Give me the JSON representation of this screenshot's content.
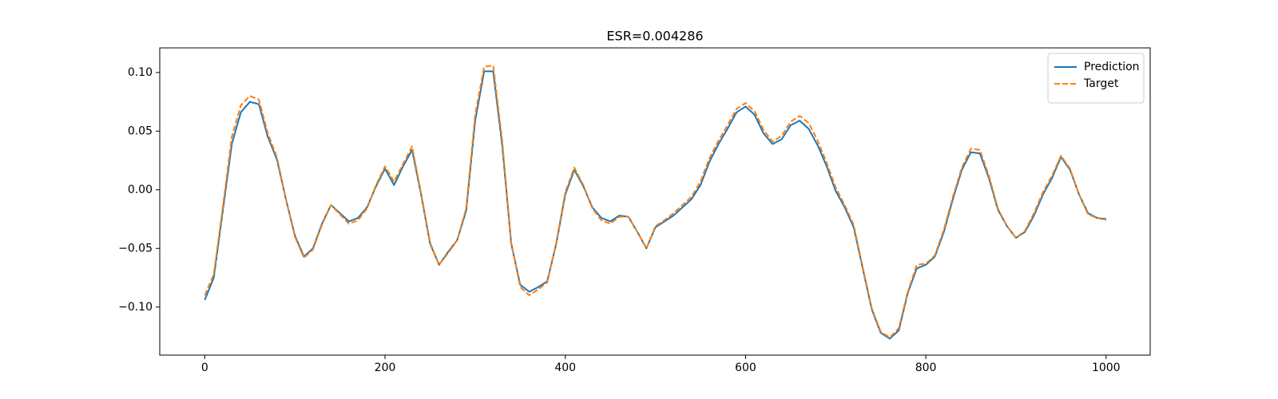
{
  "chart_data": {
    "type": "line",
    "title": "ESR=0.004286",
    "x": [
      0,
      10,
      20,
      30,
      40,
      50,
      60,
      70,
      80,
      90,
      100,
      110,
      120,
      130,
      140,
      150,
      160,
      170,
      180,
      190,
      200,
      210,
      220,
      230,
      240,
      250,
      260,
      270,
      280,
      290,
      300,
      310,
      320,
      330,
      340,
      350,
      360,
      370,
      380,
      390,
      400,
      410,
      420,
      430,
      440,
      450,
      460,
      470,
      480,
      490,
      500,
      510,
      520,
      530,
      540,
      550,
      560,
      570,
      580,
      590,
      600,
      610,
      620,
      630,
      640,
      650,
      660,
      670,
      680,
      690,
      700,
      710,
      720,
      730,
      740,
      750,
      760,
      770,
      780,
      790,
      800,
      810,
      820,
      830,
      840,
      850,
      860,
      870,
      880,
      890,
      900,
      910,
      920,
      930,
      940,
      950,
      960,
      970,
      980,
      990,
      1000
    ],
    "series": [
      {
        "name": "Prediction",
        "color": "#1f77b4",
        "linestyle": "solid",
        "values": [
          -0.094,
          -0.075,
          -0.018,
          0.039,
          0.066,
          0.075,
          0.073,
          0.045,
          0.026,
          -0.008,
          -0.039,
          -0.057,
          -0.05,
          -0.029,
          -0.013,
          -0.02,
          -0.027,
          -0.024,
          -0.015,
          0.003,
          0.018,
          0.004,
          0.02,
          0.034,
          -0.004,
          -0.046,
          -0.064,
          -0.053,
          -0.043,
          -0.018,
          0.059,
          0.101,
          0.101,
          0.038,
          -0.046,
          -0.081,
          -0.087,
          -0.083,
          -0.078,
          -0.046,
          -0.004,
          0.017,
          0.003,
          -0.015,
          -0.024,
          -0.027,
          -0.022,
          -0.023,
          -0.036,
          -0.05,
          -0.032,
          -0.027,
          -0.022,
          -0.015,
          -0.008,
          0.004,
          0.024,
          0.039,
          0.052,
          0.066,
          0.071,
          0.064,
          0.048,
          0.039,
          0.043,
          0.055,
          0.059,
          0.052,
          0.038,
          0.02,
          -0.001,
          -0.015,
          -0.032,
          -0.067,
          -0.102,
          -0.122,
          -0.127,
          -0.12,
          -0.088,
          -0.067,
          -0.064,
          -0.057,
          -0.036,
          -0.008,
          0.017,
          0.032,
          0.031,
          0.01,
          -0.017,
          -0.031,
          -0.041,
          -0.036,
          -0.022,
          -0.004,
          0.01,
          0.028,
          0.017,
          -0.004,
          -0.02,
          -0.024,
          -0.025
        ]
      },
      {
        "name": "Target",
        "color": "#ff7f0e",
        "linestyle": "dashed",
        "values": [
          -0.09,
          -0.072,
          -0.015,
          0.045,
          0.072,
          0.08,
          0.077,
          0.048,
          0.028,
          -0.008,
          -0.04,
          -0.058,
          -0.051,
          -0.03,
          -0.013,
          -0.021,
          -0.029,
          -0.026,
          -0.016,
          0.004,
          0.02,
          0.007,
          0.022,
          0.037,
          -0.003,
          -0.045,
          -0.064,
          -0.054,
          -0.043,
          -0.016,
          0.064,
          0.105,
          0.106,
          0.042,
          -0.045,
          -0.083,
          -0.09,
          -0.085,
          -0.079,
          -0.045,
          -0.002,
          0.019,
          0.004,
          -0.016,
          -0.026,
          -0.029,
          -0.023,
          -0.023,
          -0.036,
          -0.05,
          -0.031,
          -0.026,
          -0.02,
          -0.013,
          -0.006,
          0.007,
          0.027,
          0.042,
          0.055,
          0.069,
          0.074,
          0.067,
          0.051,
          0.041,
          0.046,
          0.058,
          0.063,
          0.057,
          0.042,
          0.023,
          0.002,
          -0.013,
          -0.03,
          -0.066,
          -0.101,
          -0.121,
          -0.126,
          -0.118,
          -0.087,
          -0.064,
          -0.063,
          -0.056,
          -0.034,
          -0.006,
          0.019,
          0.035,
          0.034,
          0.012,
          -0.016,
          -0.031,
          -0.041,
          -0.035,
          -0.02,
          -0.002,
          0.012,
          0.029,
          0.018,
          -0.004,
          -0.021,
          -0.024,
          -0.026
        ]
      }
    ],
    "xlim": [
      -49.95,
      1048.95
    ],
    "xticks": [
      0,
      200,
      400,
      600,
      800,
      1000
    ],
    "ylim": [
      -0.141,
      0.121
    ],
    "yticks": [
      {
        "value": -0.1,
        "label": "−0.10"
      },
      {
        "value": -0.05,
        "label": "−0.05"
      },
      {
        "value": 0,
        "label": "0.00"
      },
      {
        "value": 0.05,
        "label": "0.05"
      },
      {
        "value": 0.1,
        "label": "0.10"
      }
    ],
    "legend": "upper right",
    "grid": false
  }
}
